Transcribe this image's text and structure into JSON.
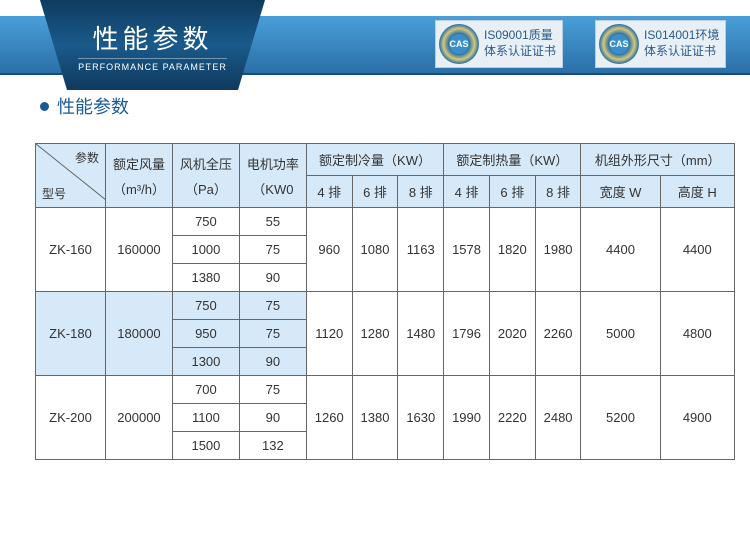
{
  "banner": {
    "title": "性能参数",
    "subtitle": "PERFORMANCE  PARAMETER"
  },
  "certs": [
    {
      "badge": "CAS",
      "line1": "IS09001质量",
      "line2": "体系认证证书"
    },
    {
      "badge": "CAS",
      "line1": "IS014001环境",
      "line2": "体系认证证书"
    }
  ],
  "section_title": "性能参数",
  "table": {
    "diag_top": "参数",
    "diag_bot": "型号",
    "headers": {
      "airflow": "额定风量",
      "airflow_unit": "（m³/h）",
      "pressure": "风机全压",
      "pressure_unit": "（Pa）",
      "power": "电机功率",
      "power_unit": "（KW0",
      "cooling": "额定制冷量（KW）",
      "heating": "额定制热量（KW）",
      "dims": "机组外形尺寸（mm）",
      "row4": "4 排",
      "row6": "6 排",
      "row8": "8 排",
      "width_w": "宽度 W",
      "height_h": "高度 H"
    },
    "groups": [
      {
        "model": "ZK-160",
        "airflow": "160000",
        "hl": false,
        "rows": [
          {
            "p": "750",
            "kw": "55"
          },
          {
            "p": "1000",
            "kw": "75"
          },
          {
            "p": "1380",
            "kw": "90"
          }
        ],
        "c4": "960",
        "c6": "1080",
        "c8": "1163",
        "h4": "1578",
        "h6": "1820",
        "h8": "1980",
        "w": "4400",
        "h": "4400"
      },
      {
        "model": "ZK-180",
        "airflow": "180000",
        "hl": true,
        "rows": [
          {
            "p": "750",
            "kw": "75"
          },
          {
            "p": "950",
            "kw": "75"
          },
          {
            "p": "1300",
            "kw": "90"
          }
        ],
        "c4": "1120",
        "c6": "1280",
        "c8": "1480",
        "h4": "1796",
        "h6": "2020",
        "h8": "2260",
        "w": "5000",
        "h": "4800"
      },
      {
        "model": "ZK-200",
        "airflow": "200000",
        "hl": false,
        "rows": [
          {
            "p": "700",
            "kw": "75"
          },
          {
            "p": "1100",
            "kw": "90"
          },
          {
            "p": "1500",
            "kw": "132"
          }
        ],
        "c4": "1260",
        "c6": "1380",
        "c8": "1630",
        "h4": "1990",
        "h6": "2220",
        "h8": "2480",
        "w": "5200",
        "h": "4900"
      }
    ]
  },
  "colors": {
    "header_bg": "#d6e9f8",
    "border": "#666666",
    "accent": "#1a5a9a",
    "banner_dark": "#0f3a5f"
  }
}
